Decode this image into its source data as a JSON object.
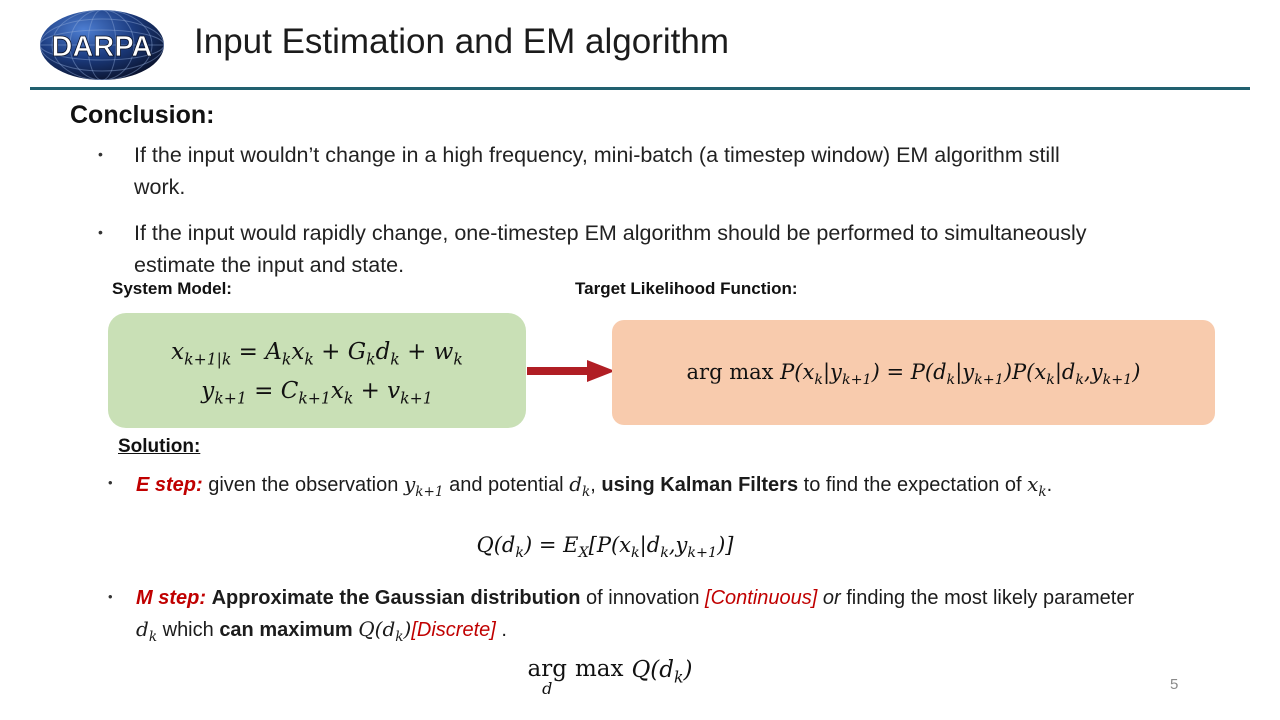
{
  "colors": {
    "accent_red": "#C00000",
    "rule_teal": "#21606F",
    "green_box": "#C9E0B6",
    "orange_box": "#F8CBAD",
    "arrow_red": "#B01E24",
    "logo_navy": "#0E1F4E"
  },
  "header": {
    "logo_text": "DARPA",
    "title": "Input Estimation and EM algorithm"
  },
  "bullet_char": "•",
  "conclusion": {
    "heading": "Conclusion:",
    "bullets": [
      "If the input wouldn’t change in a high frequency, mini-batch (a timestep window) EM algorithm still work.",
      "If the input would rapidly change, one-timestep EM algorithm should be performed to simultaneously estimate the input and state."
    ]
  },
  "system_model": {
    "label": "System Model:",
    "equations": [
      [
        {
          "t": "x_{k+1|k} = A_{k}x_{k} + G_{k}d_{k} + w_{k}",
          "s": "m"
        }
      ],
      [
        {
          "t": "y_{k+1} = C_{k+1}x_{k} + v_{k+1}",
          "s": "m"
        }
      ]
    ]
  },
  "target_likelihood": {
    "label": "Target Likelihood Function:",
    "equation": [
      {
        "t": "arg max ",
        "s": "mr"
      },
      {
        "t": "P(x_{k}|y_{k+1}) = P(d_{k}|y_{k+1})P(x_{k}|d_{k},y_{k+1})",
        "s": "m"
      }
    ]
  },
  "solution": {
    "heading": "Solution:",
    "e_step": [
      {
        "t": "E step:",
        "s": "rbi"
      },
      {
        "t": " given the observation ",
        "s": ""
      },
      {
        "t": "y_{k+1}",
        "s": "m"
      },
      {
        "t": " and potential ",
        "s": ""
      },
      {
        "t": "d_{k}",
        "s": "m"
      },
      {
        "t": ", ",
        "s": ""
      },
      {
        "t": "using Kalman Filters",
        "s": "b"
      },
      {
        "t": " to find the expectation of ",
        "s": ""
      },
      {
        "t": "x_{k}",
        "s": "m"
      },
      {
        "t": ".",
        "s": ""
      }
    ],
    "q_equation": [
      {
        "t": "Q(d_{k}) = E_{X}[P(x_{k}|d_{k},y_{k+1})]",
        "s": "m"
      }
    ],
    "m_step": [
      {
        "t": "M step:",
        "s": "rbi"
      },
      {
        "t": " ",
        "s": ""
      },
      {
        "t": "Approximate the Gaussian distribution",
        "s": "b"
      },
      {
        "t": " of innovation ",
        "s": ""
      },
      {
        "t": "[Continuous]",
        "s": "ri"
      },
      {
        "t": " or ",
        "s": "i"
      },
      {
        "t": "finding the most likely parameter ",
        "s": ""
      },
      {
        "t": "d_{k}",
        "s": "m"
      },
      {
        "t": " which ",
        "s": ""
      },
      {
        "t": "can maximum ",
        "s": "b"
      },
      {
        "t": "Q(d_{k})",
        "s": "m"
      },
      {
        "t": "[Discrete]",
        "s": "ri"
      },
      {
        "t": " .",
        "s": ""
      }
    ],
    "argmax": {
      "op": "arg",
      "under": "d",
      "max": "max",
      "expr": [
        {
          "t": "Q(d_{k})",
          "s": "m"
        }
      ]
    }
  },
  "page_number": "5"
}
